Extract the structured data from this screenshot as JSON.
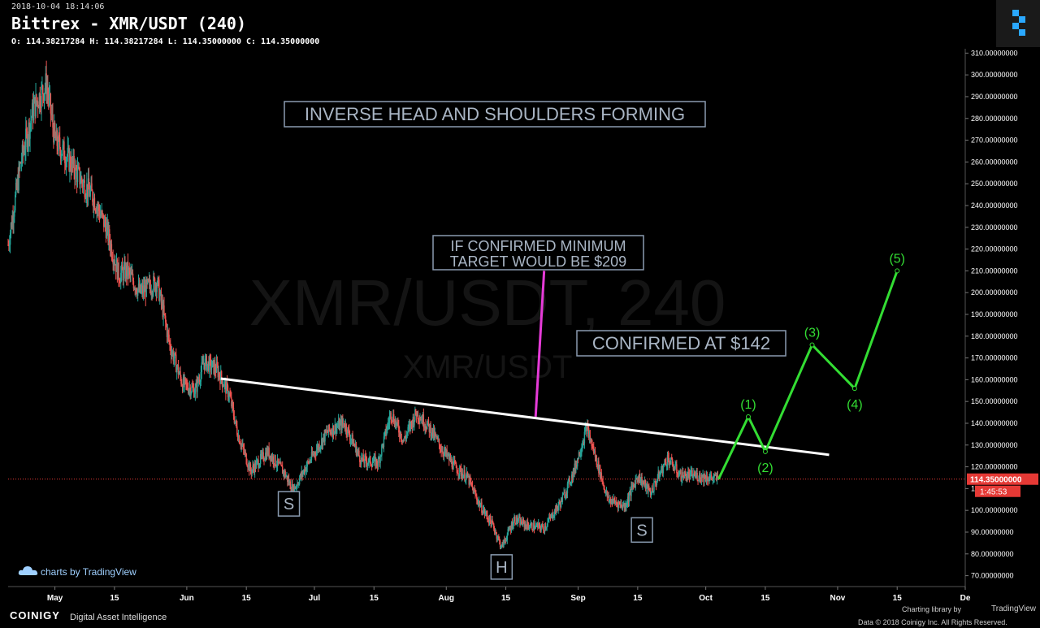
{
  "header": {
    "timestamp": "2018-10-04 18:14:06",
    "title": "Bittrex - XMR/USDT (240)",
    "ohlc": "O: 114.38217284 H: 114.38217284 L: 114.35000000 C: 114.35000000"
  },
  "watermark": {
    "big": "XMR/USDT, 240",
    "small": "XMR/USDT"
  },
  "price_tag": {
    "value": "114.35000000",
    "countdown": "1:45:53"
  },
  "tradingview_brand": "charts by TradingView",
  "footer": {
    "brand": "COINIGY",
    "tagline": "Digital Asset Intelligence",
    "library": "Charting library by",
    "library_brand": "TradingView",
    "copyright": "Data © 2018   Coinigy Inc. All Rights Reserved."
  },
  "colors": {
    "candle_up": "#26a69a",
    "candle_down": "#ef5350",
    "neckline": "#ffffff",
    "target_line": "#e63bd8",
    "wave_path": "#33dd33",
    "price_line": "#e53935",
    "annotation_border": "#8a9bb0",
    "annotation_text": "#a9b5c4"
  },
  "chart_data": {
    "type": "candlestick",
    "y_axis": {
      "min": 65,
      "max": 312,
      "ticks": [
        "70.00000000",
        "80.00000000",
        "90.00000000",
        "100.00000000",
        "110.00000000",
        "120.00000000",
        "130.00000000",
        "140.00000000",
        "150.00000000",
        "160.00000000",
        "170.00000000",
        "180.00000000",
        "190.00000000",
        "200.00000000",
        "210.00000000",
        "220.00000000",
        "230.00000000",
        "240.00000000",
        "250.00000000",
        "260.00000000",
        "270.00000000",
        "280.00000000",
        "290.00000000",
        "300.00000000",
        "310.00000000"
      ]
    },
    "x_axis": {
      "start": "2018-04-20",
      "end": "2018-12-01",
      "ticks": [
        {
          "date": "2018-05-01",
          "label": "May"
        },
        {
          "date": "2018-05-15",
          "label": "15"
        },
        {
          "date": "2018-06-01",
          "label": "Jun"
        },
        {
          "date": "2018-06-15",
          "label": "15"
        },
        {
          "date": "2018-07-01",
          "label": "Jul"
        },
        {
          "date": "2018-07-15",
          "label": "15"
        },
        {
          "date": "2018-08-01",
          "label": "Aug"
        },
        {
          "date": "2018-08-15",
          "label": "15"
        },
        {
          "date": "2018-09-01",
          "label": "Sep"
        },
        {
          "date": "2018-09-15",
          "label": "15"
        },
        {
          "date": "2018-10-01",
          "label": "Oct"
        },
        {
          "date": "2018-10-15",
          "label": "15"
        },
        {
          "date": "2018-11-01",
          "label": "Nov"
        },
        {
          "date": "2018-11-15",
          "label": "15"
        },
        {
          "date": "2018-12-01",
          "label": "De"
        }
      ]
    },
    "price_path": [
      [
        "2018-04-20",
        222
      ],
      [
        "2018-04-23",
        260
      ],
      [
        "2018-04-26",
        285
      ],
      [
        "2018-04-29",
        296
      ],
      [
        "2018-05-01",
        270
      ],
      [
        "2018-05-04",
        262
      ],
      [
        "2018-05-07",
        252
      ],
      [
        "2018-05-10",
        244
      ],
      [
        "2018-05-13",
        230
      ],
      [
        "2018-05-16",
        208
      ],
      [
        "2018-05-18",
        210
      ],
      [
        "2018-05-21",
        200
      ],
      [
        "2018-05-25",
        205
      ],
      [
        "2018-05-28",
        176
      ],
      [
        "2018-05-31",
        158
      ],
      [
        "2018-06-03",
        155
      ],
      [
        "2018-06-05",
        168
      ],
      [
        "2018-06-08",
        165
      ],
      [
        "2018-06-11",
        153
      ],
      [
        "2018-06-13",
        135
      ],
      [
        "2018-06-16",
        118
      ],
      [
        "2018-06-20",
        127
      ],
      [
        "2018-06-24",
        117
      ],
      [
        "2018-06-26",
        109
      ],
      [
        "2018-06-29",
        120
      ],
      [
        "2018-07-04",
        136
      ],
      [
        "2018-07-08",
        140
      ],
      [
        "2018-07-12",
        123
      ],
      [
        "2018-07-16",
        122
      ],
      [
        "2018-07-19",
        145
      ],
      [
        "2018-07-22",
        132
      ],
      [
        "2018-07-25",
        145
      ],
      [
        "2018-07-28",
        138
      ],
      [
        "2018-07-31",
        128
      ],
      [
        "2018-08-03",
        120
      ],
      [
        "2018-08-06",
        115
      ],
      [
        "2018-08-09",
        102
      ],
      [
        "2018-08-12",
        93
      ],
      [
        "2018-08-14",
        83
      ],
      [
        "2018-08-17",
        96
      ],
      [
        "2018-08-20",
        93
      ],
      [
        "2018-08-24",
        92
      ],
      [
        "2018-08-28",
        104
      ],
      [
        "2018-08-31",
        118
      ],
      [
        "2018-09-03",
        138
      ],
      [
        "2018-09-05",
        125
      ],
      [
        "2018-09-08",
        105
      ],
      [
        "2018-09-12",
        102
      ],
      [
        "2018-09-15",
        116
      ],
      [
        "2018-09-18",
        108
      ],
      [
        "2018-09-22",
        124
      ],
      [
        "2018-09-25",
        116
      ],
      [
        "2018-09-29",
        116
      ],
      [
        "2018-10-04",
        114.35
      ]
    ],
    "current_price": 114.35,
    "neckline": [
      [
        "2018-06-09",
        160.5
      ],
      [
        "2018-10-30",
        125.5
      ]
    ],
    "target_line": [
      [
        "2018-08-22",
        143
      ],
      [
        "2018-08-24",
        210
      ]
    ],
    "wave_path": [
      {
        "label": "",
        "date": "2018-10-04",
        "value": 114.35
      },
      {
        "label": "(1)",
        "date": "2018-10-11",
        "value": 143
      },
      {
        "label": "(2)",
        "date": "2018-10-15",
        "value": 127
      },
      {
        "label": "(3)",
        "date": "2018-10-26",
        "value": 176
      },
      {
        "label": "(4)",
        "date": "2018-11-05",
        "value": 156
      },
      {
        "label": "(5)",
        "date": "2018-11-15",
        "value": 210
      }
    ],
    "pattern_labels": [
      {
        "text": "S",
        "date": "2018-06-25",
        "value": 103
      },
      {
        "text": "H",
        "date": "2018-08-14",
        "value": 74
      },
      {
        "text": "S",
        "date": "2018-09-16",
        "value": 91
      }
    ],
    "annotations": [
      {
        "lines": [
          "INVERSE HEAD AND SHOULDERS FORMING"
        ]
      },
      {
        "lines": [
          "IF CONFIRMED MINIMUM",
          " TARGET WOULD BE $209"
        ]
      },
      {
        "lines": [
          "CONFIRMED AT $142"
        ]
      }
    ]
  }
}
